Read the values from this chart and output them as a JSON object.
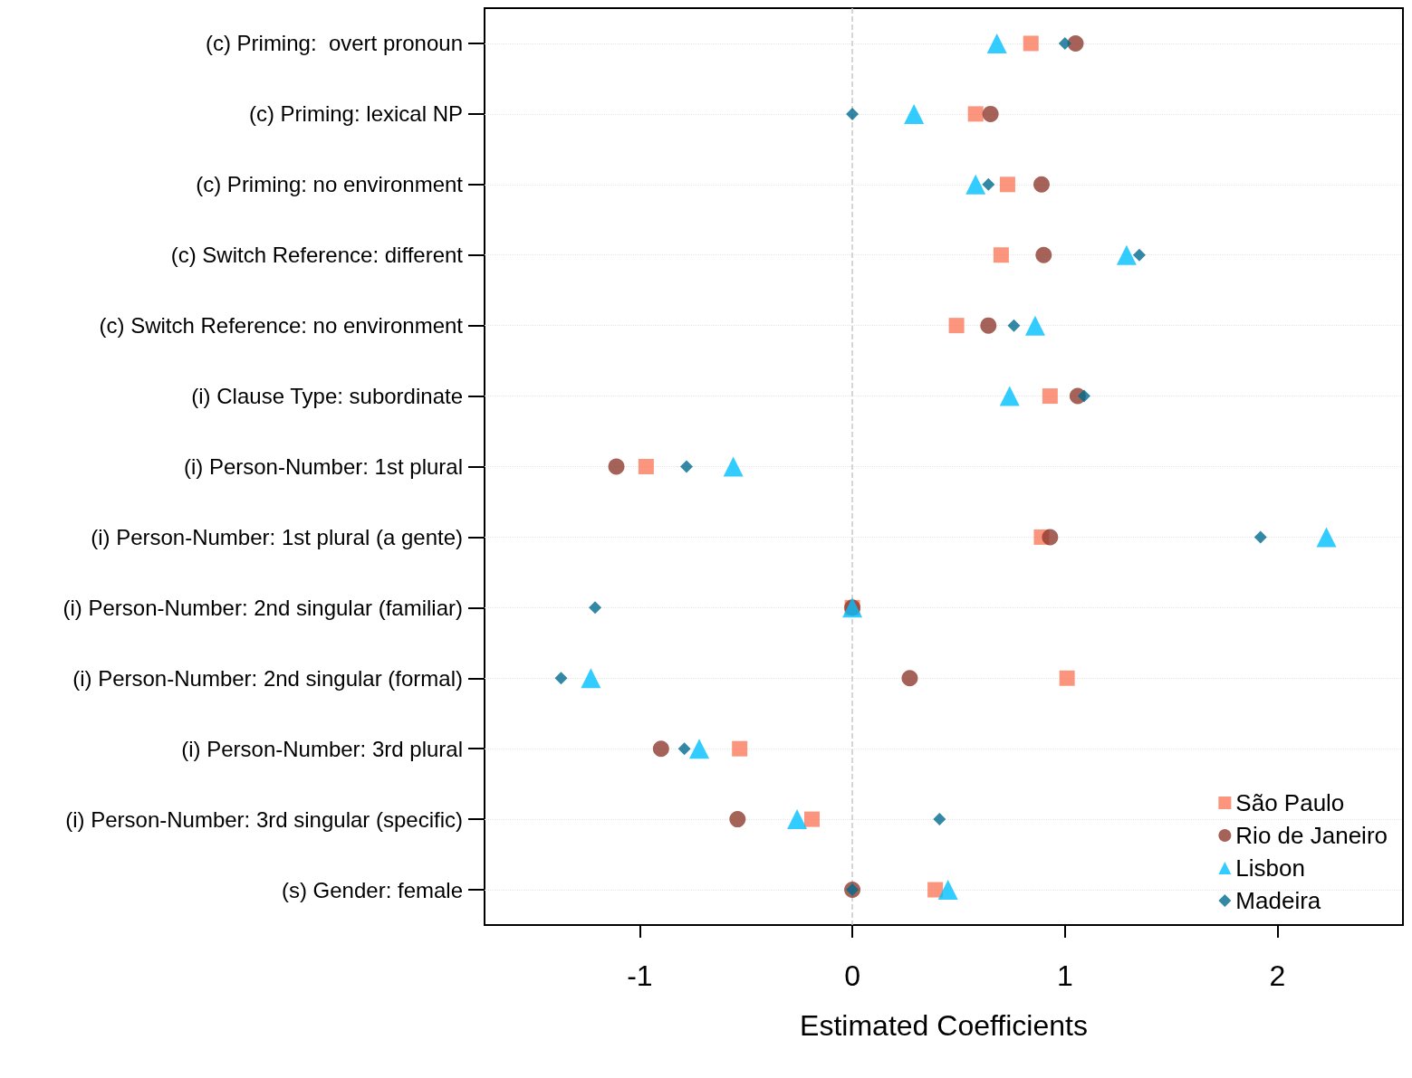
{
  "chart_data": {
    "type": "scatter",
    "xlabel": "Estimated Coefficients",
    "categories": [
      "(c) Priming:  overt pronoun",
      "(c) Priming: lexical NP",
      "(c) Priming: no environment",
      "(c) Switch Reference: different",
      "(c) Switch Reference: no environment",
      "(i) Clause Type: subordinate",
      "(i) Person-Number: 1st plural",
      "(i) Person-Number: 1st plural (a gente)",
      "(i) Person-Number: 2nd singular (familiar)",
      "(i) Person-Number: 2nd singular (formal)",
      "(i) Person-Number: 3rd plural",
      "(i) Person-Number: 3rd singular (specific)",
      "(s) Gender: female"
    ],
    "orientation": "horizontal",
    "series": [
      {
        "name": "São Paulo",
        "color": "#fa7a5c",
        "marker": "square",
        "values": [
          0.84,
          0.58,
          0.73,
          0.7,
          0.49,
          0.93,
          -0.97,
          0.89,
          0,
          1.01,
          -0.53,
          -0.19,
          0.39
        ]
      },
      {
        "name": "Rio de Janeiro",
        "color": "#8e3b2f",
        "marker": "circle",
        "values": [
          1.05,
          0.65,
          0.89,
          0.9,
          0.64,
          1.06,
          -1.11,
          0.93,
          0,
          0.27,
          -0.9,
          -0.54,
          0
        ]
      },
      {
        "name": "Lisbon",
        "color": "#00bfff",
        "marker": "triangle",
        "values": [
          0.68,
          0.29,
          0.58,
          1.29,
          0.86,
          0.74,
          -0.56,
          2.23,
          0,
          -1.23,
          -0.72,
          -0.26,
          0.45
        ]
      },
      {
        "name": "Madeira",
        "color": "#006a8e",
        "marker": "diamond",
        "values": [
          1.0,
          0,
          0.64,
          1.35,
          0.76,
          1.09,
          -0.78,
          1.92,
          -1.21,
          -1.37,
          -0.79,
          0.41,
          0
        ]
      }
    ],
    "xlim": [
      -1.73,
      2.59
    ],
    "xticks": [
      -1,
      0,
      1,
      2
    ],
    "ref_lines": [
      {
        "axis": "x",
        "value": 0,
        "color": "#c8c8c8",
        "line_style": "dashed"
      }
    ],
    "grid": "y",
    "legend": "bottom right"
  }
}
